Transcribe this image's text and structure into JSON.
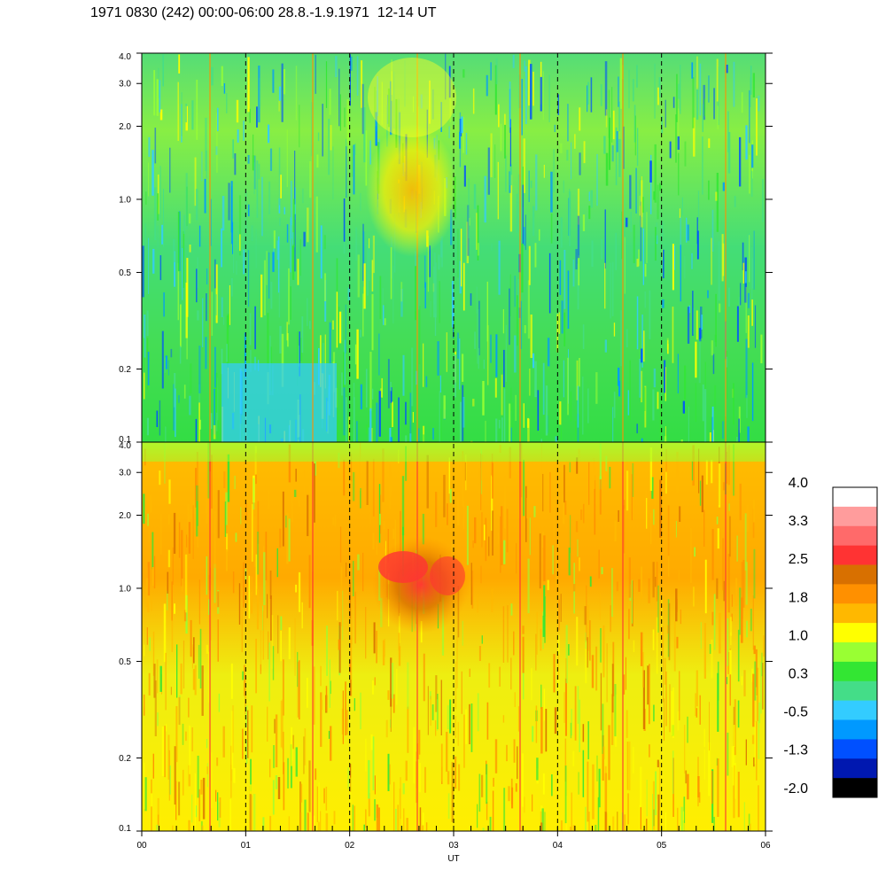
{
  "title": "1971 0830 (242) 00:00-06:00 28.8.-1.9.1971  12-14 UT",
  "chart_data": [
    {
      "type": "heatmap",
      "panel": "upper",
      "x_unit": "UT",
      "x_range": [
        "00",
        "06"
      ],
      "y_scale": "log",
      "ylim": [
        0.1,
        4.0
      ],
      "yticks": [
        "0.1",
        "0.2",
        "0.5",
        "1.0",
        "2.0",
        "3.0",
        "4.0"
      ],
      "dominant_levels": "green to cyan (about -0.5 to 1.0), yellow patch near 02-03 UT around 1.0-3.0, vertical orange streaks near 00:40, 02:37, 03:37, 04:37, 05:37 UT"
    },
    {
      "type": "heatmap",
      "panel": "lower",
      "x_unit": "UT",
      "x_range": [
        "00",
        "06"
      ],
      "y_scale": "log",
      "ylim": [
        0.1,
        4.0
      ],
      "yticks": [
        "0.1",
        "0.2",
        "0.5",
        "1.0",
        "2.0",
        "3.0",
        "4.0"
      ],
      "dominant_levels": "yellow to orange (about 1.0 to 2.5), red patch near 02:15-03:10 UT around 0.8-1.6, green near top edge"
    }
  ],
  "xaxis": {
    "label": "UT",
    "ticks": [
      "00",
      "01",
      "02",
      "03",
      "04",
      "05",
      "06"
    ]
  },
  "colorbar": {
    "labels": [
      "4.0",
      "3.3",
      "2.5",
      "1.8",
      "1.0",
      "0.3",
      "-0.5",
      "-1.3",
      "-2.0"
    ],
    "colors": [
      "#ffffff",
      "#ff9c9c",
      "#ff6a6a",
      "#ff3333",
      "#d87000",
      "#ff9000",
      "#ffb800",
      "#ffff00",
      "#99ff33",
      "#33e633",
      "#44dd88",
      "#33ccff",
      "#0099ff",
      "#0050ff",
      "#0018b0",
      "#000000"
    ]
  }
}
